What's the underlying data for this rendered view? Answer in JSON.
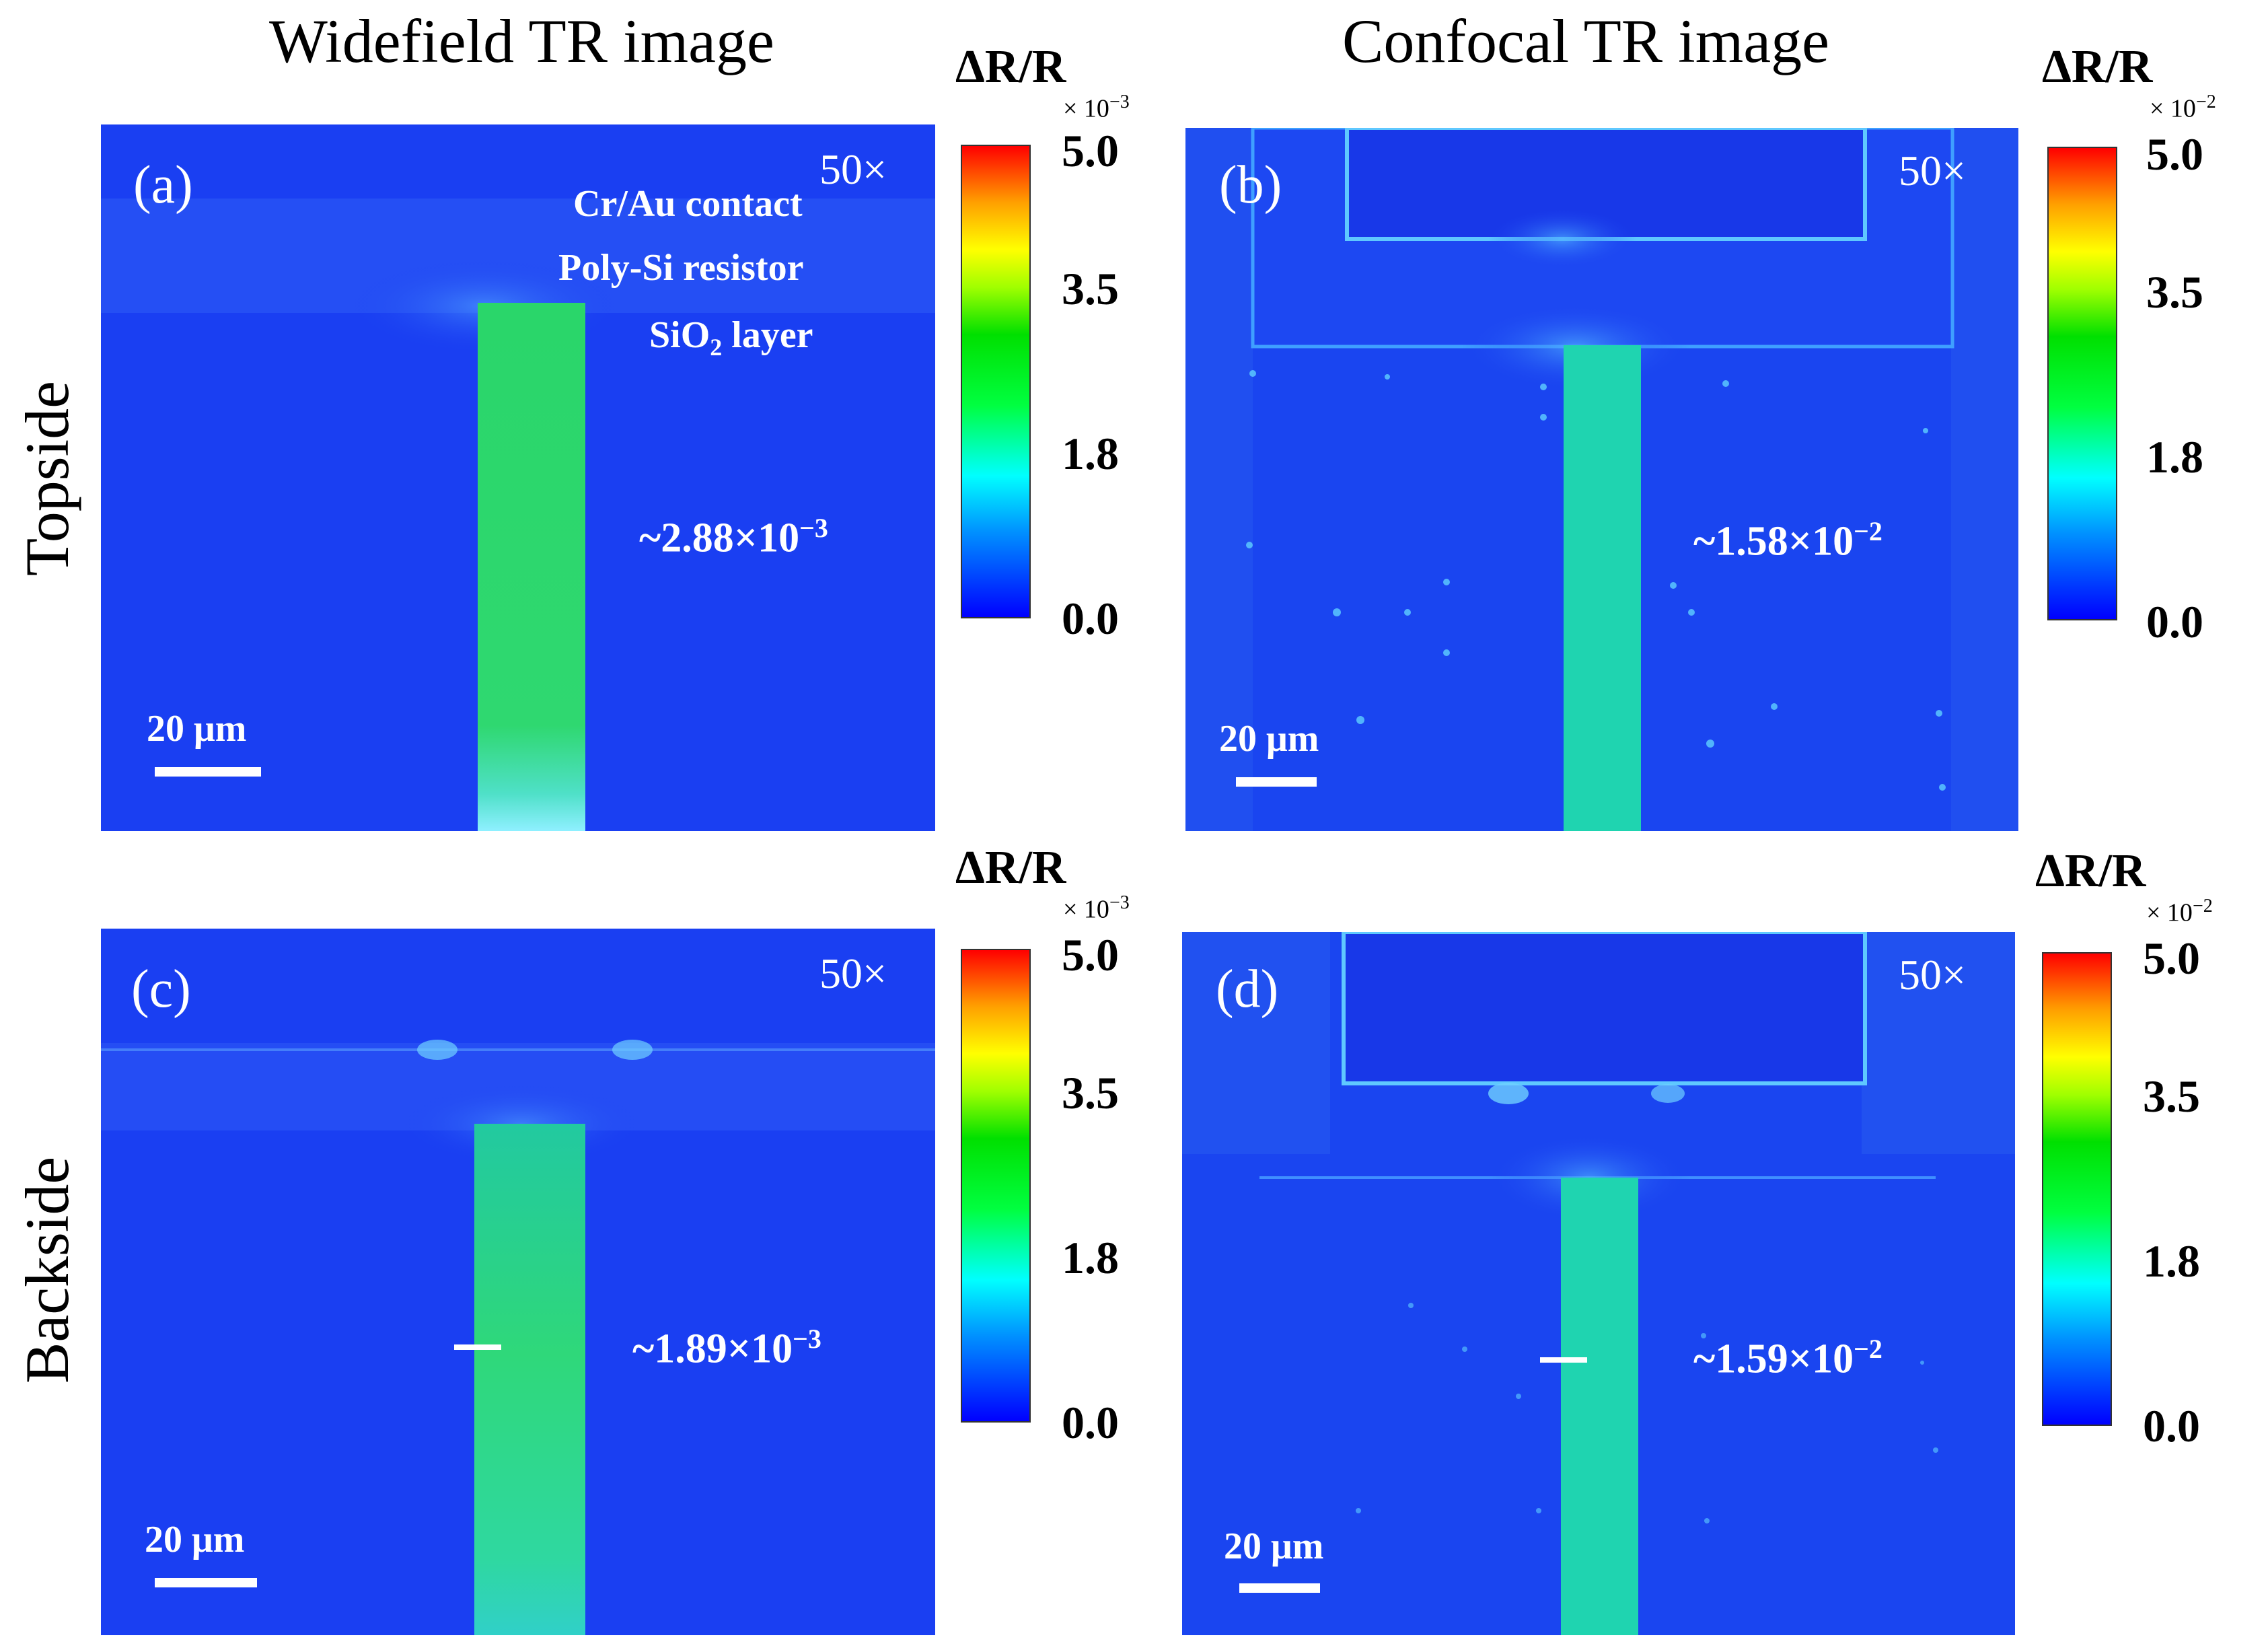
{
  "columns": {
    "widefield": "Widefield TR image",
    "confocal": "Confocal TR image"
  },
  "rows": {
    "topside": "Topside",
    "backside": "Backside"
  },
  "panels": {
    "a": {
      "label": "(a)",
      "mag": "50×",
      "value": "~2.88×10",
      "exp": "−3",
      "scale": "20 μm",
      "annotations": {
        "contact": "Cr/Au contact",
        "resistor": "Poly-Si resistor",
        "oxide_main": "SiO",
        "oxide_sub": "2",
        "oxide_rest": " layer"
      }
    },
    "b": {
      "label": "(b)",
      "mag": "50×",
      "value": "~1.58×10",
      "exp": "−2",
      "scale": "20 μm"
    },
    "c": {
      "label": "(c)",
      "mag": "50×",
      "value": "~1.89×10",
      "exp": "−3",
      "scale": "20 μm"
    },
    "d": {
      "label": "(d)",
      "mag": "50×",
      "value": "~1.59×10",
      "exp": "−2",
      "scale": "20 μm"
    }
  },
  "colorbars": {
    "top_left": {
      "title": "ΔR/R",
      "exponent": "× 10",
      "exp_power": "−3",
      "ticks": [
        "5.0",
        "3.5",
        "1.8",
        "0.0"
      ]
    },
    "top_right": {
      "title": "ΔR/R",
      "exponent": "× 10",
      "exp_power": "−2",
      "ticks": [
        "5.0",
        "3.5",
        "1.8",
        "0.0"
      ]
    },
    "bottom_left": {
      "title": "ΔR/R",
      "exponent": "× 10",
      "exp_power": "−3",
      "ticks": [
        "5.0",
        "3.5",
        "1.8",
        "0.0"
      ]
    },
    "bottom_right": {
      "title": "ΔR/R",
      "exponent": "× 10",
      "exp_power": "−2",
      "ticks": [
        "5.0",
        "3.5",
        "1.8",
        "0.0"
      ]
    }
  },
  "colors": {
    "background_blue": "#1a3ff2",
    "resistor_green": "#2ad66a",
    "resistor_cyan": "#1fd4b0"
  }
}
